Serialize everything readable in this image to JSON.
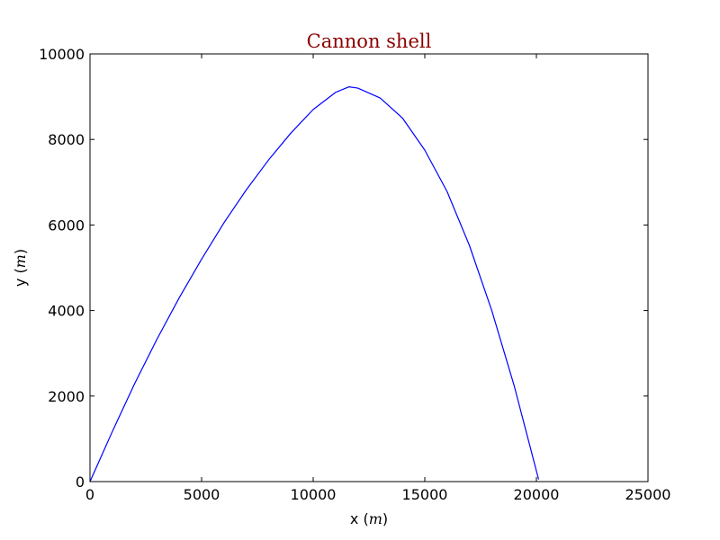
{
  "chart_data": {
    "type": "line",
    "title": "Cannon shell",
    "title_color": "#8b0000",
    "xlabel": {
      "prefix": "x (",
      "math": "m",
      "suffix": ")"
    },
    "ylabel": {
      "prefix": "y (",
      "math": "m",
      "suffix": ")"
    },
    "xlim": [
      0,
      25000
    ],
    "ylim": [
      0,
      10000
    ],
    "xticks": [
      0,
      5000,
      10000,
      15000,
      20000,
      25000
    ],
    "yticks": [
      0,
      2000,
      4000,
      6000,
      8000,
      10000
    ],
    "grid": false,
    "series": [
      {
        "color": "#0000ff",
        "x": [
          0,
          1000,
          2000,
          3000,
          4000,
          5000,
          6000,
          7000,
          8000,
          9000,
          10000,
          11000,
          11600,
          12000,
          13000,
          14000,
          15000,
          16000,
          17000,
          18000,
          19000,
          20000,
          20100
        ],
        "y": [
          0,
          1170,
          2290,
          3330,
          4300,
          5200,
          6050,
          6820,
          7520,
          8150,
          8700,
          9100,
          9230,
          9200,
          8970,
          8500,
          7750,
          6780,
          5520,
          4000,
          2250,
          250,
          50
        ]
      }
    ]
  }
}
